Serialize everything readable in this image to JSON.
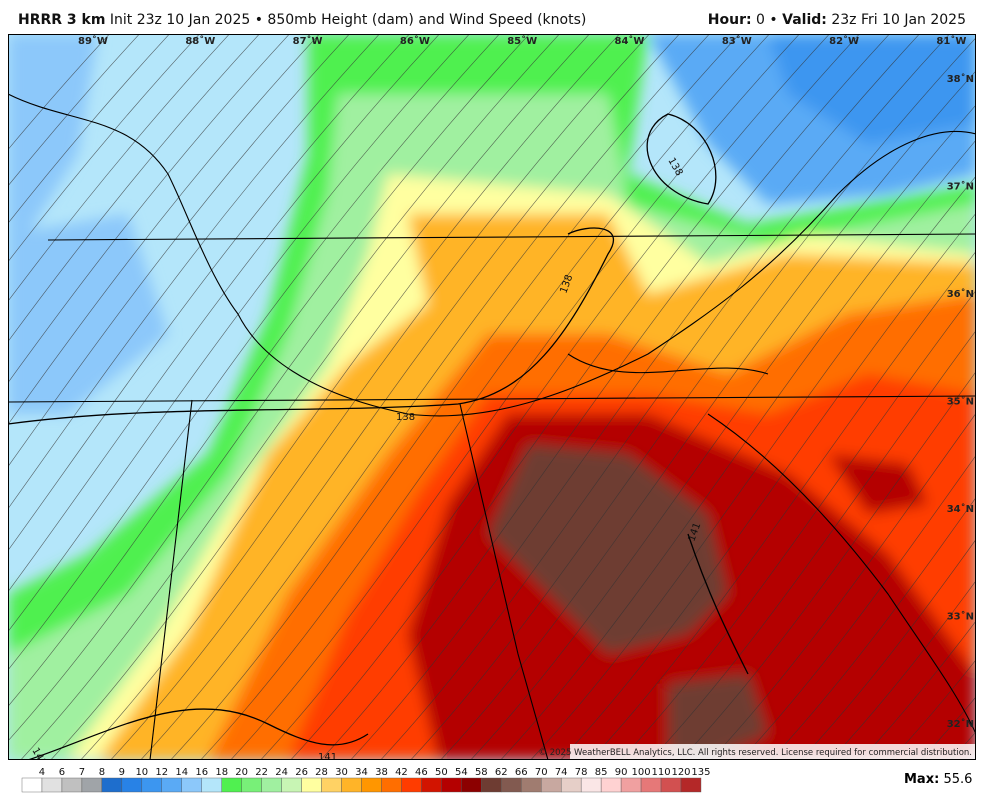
{
  "header": {
    "model": "HRRR 3 km",
    "title": "Init 23z 10 Jan 2025 • 850mb Height (dam) and Wind Speed (knots)",
    "hour_label": "Hour:",
    "hour": 0,
    "separator": "•",
    "valid_label": "Valid:",
    "valid": "23z Fri 10 Jan 2025"
  },
  "longitudes": [
    "89˚W",
    "88˚W",
    "87˚W",
    "86˚W",
    "85˚W",
    "84˚W",
    "83˚W",
    "82˚W",
    "81˚W"
  ],
  "latitudes": [
    "38˚N",
    "37˚N",
    "36˚N",
    "35˚N",
    "34˚N",
    "33˚N",
    "32˚N"
  ],
  "contour_labels": [
    "138",
    "138",
    "138",
    "141",
    "141",
    "141"
  ],
  "copyright": "© 2025 WeatherBELL Analytics, LLC. All rights reserved. License required for commercial distribution.",
  "colorbar": {
    "labels": [
      4,
      6,
      7,
      8,
      9,
      10,
      12,
      14,
      16,
      18,
      20,
      22,
      24,
      26,
      28,
      30,
      34,
      38,
      42,
      46,
      50,
      54,
      58,
      62,
      66,
      70,
      74,
      78,
      85,
      90,
      100,
      110,
      120,
      135
    ],
    "colors": [
      "#ffffff",
      "#e1e1e1",
      "#c0c0c0",
      "#a0a4a8",
      "#1e6ecd",
      "#2882e6",
      "#3c96f0",
      "#5aaaf5",
      "#8cc8fa",
      "#b4e6fa",
      "#50f050",
      "#78f078",
      "#a0f0a0",
      "#c8f5b4",
      "#ffffa0",
      "#ffd264",
      "#ffb428",
      "#ff9600",
      "#ff6e00",
      "#ff3c00",
      "#d21400",
      "#b40000",
      "#8c0000",
      "#6e3c32",
      "#825a50",
      "#a07c70",
      "#c8a8a0",
      "#e6cfc8",
      "#fae6e6",
      "#ffd2d2",
      "#f0a0a0",
      "#e67878",
      "#d25050",
      "#b42828"
    ]
  },
  "max": {
    "label": "Max:",
    "value": 55.6
  }
}
